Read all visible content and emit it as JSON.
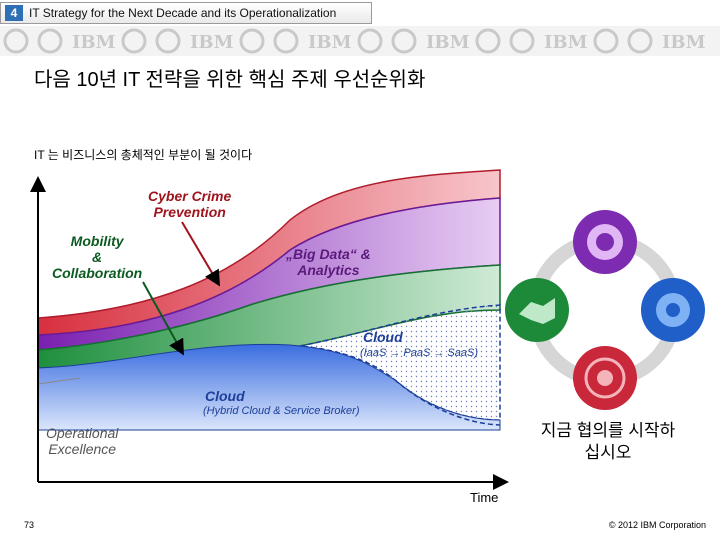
{
  "header": {
    "slide_number": "4",
    "tab_title": "IT Strategy for the Next Decade and its Operationalization",
    "brand": "IBM"
  },
  "title": "다음 10년 IT 전략을 위한 핵심 주제 우선순위화",
  "subtitle": "IT 는 비즈니스의 총체적인 부분이 될 것이다",
  "chart_labels": {
    "cyber": "Cyber Crime\nPrevention",
    "mobility": "Mobility\n&\nCollaboration",
    "bigdata": "„Big Data“ &\nAnalytics",
    "cloud_public": "Cloud",
    "cloud_public_sub": "(IaaS → PaaS → SaaS)",
    "cloud_hybrid": "Cloud",
    "cloud_hybrid_sub": "(Hybrid Cloud & Service Broker)",
    "operational": "Operational\nExcellence",
    "x_axis": "Time"
  },
  "cta": "지금 협의를 시작하\n십시오",
  "footer": {
    "page": "73",
    "copyright": "© 2012 IBM Corporation"
  },
  "colors": {
    "red": "#c8283a",
    "purple": "#7d2bb0",
    "green": "#1d8a3a",
    "blue": "#3b6fe0",
    "accent": "#2f6fb5"
  },
  "icons": [
    "purple-cog-icon",
    "blue-gear-icon",
    "red-target-icon",
    "green-handshake-icon"
  ]
}
